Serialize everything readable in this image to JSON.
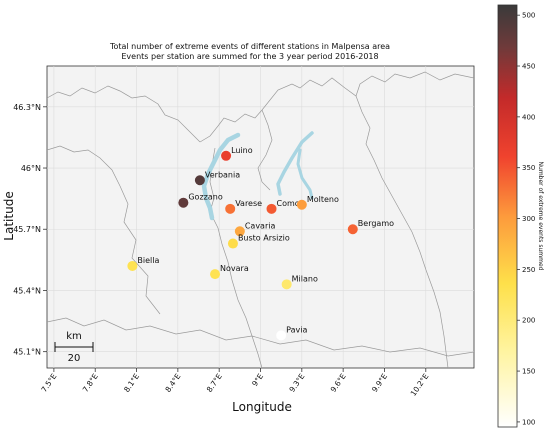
{
  "title_line1": "Total number of extreme events of different stations in Malpensa area",
  "title_line2": "Events per station are summed for the 3 year period 2016-2018",
  "xlabel": "Longitude",
  "ylabel": "Latitude",
  "x_ticks": [
    "7.5°E",
    "7.8°E",
    "8.1°E",
    "8.4°E",
    "8.7°E",
    "9°E",
    "9.3°E",
    "9.6°E",
    "9.9°E",
    "10.2°E"
  ],
  "y_ticks": [
    "46.3°N",
    "46°N",
    "45.7°N",
    "45.4°N",
    "45.1°N"
  ],
  "colorbar_label": "Number of extreme events summed",
  "colorbar_ticks": [
    "100",
    "150",
    "200",
    "250",
    "300",
    "350",
    "400",
    "450",
    "500"
  ],
  "scale_bar": {
    "unit": "km",
    "value": "20"
  },
  "colors": {
    "background": "#ffffff",
    "map_background": "#f3f3f3",
    "borders": "#9a9a9a",
    "grid": "#dcdcdc",
    "lakes": "#a8d5e2"
  },
  "chart_data": {
    "type": "scatter",
    "xlabel": "Longitude",
    "ylabel": "Latitude",
    "xlim": [
      7.45,
      10.55
    ],
    "ylim": [
      45.02,
      46.5
    ],
    "colorbar_range": [
      95,
      510
    ],
    "colormap": "YlOrRd-to-black",
    "stations": [
      {
        "name": "Luino",
        "lon": 8.75,
        "lat": 46.06,
        "events": 370
      },
      {
        "name": "Verbania",
        "lon": 8.56,
        "lat": 45.94,
        "events": 490
      },
      {
        "name": "Gozzano",
        "lon": 8.44,
        "lat": 45.83,
        "events": 480
      },
      {
        "name": "Varese",
        "lon": 8.78,
        "lat": 45.8,
        "events": 330
      },
      {
        "name": "Como",
        "lon": 9.08,
        "lat": 45.8,
        "events": 345
      },
      {
        "name": "Molteno",
        "lon": 9.3,
        "lat": 45.82,
        "events": 300
      },
      {
        "name": "Bergamo",
        "lon": 9.67,
        "lat": 45.7,
        "events": 340
      },
      {
        "name": "Cavaria",
        "lon": 8.85,
        "lat": 45.69,
        "events": 290
      },
      {
        "name": "Busto Arsizio",
        "lon": 8.8,
        "lat": 45.63,
        "events": 240
      },
      {
        "name": "Biella",
        "lon": 8.07,
        "lat": 45.52,
        "events": 230
      },
      {
        "name": "Novara",
        "lon": 8.67,
        "lat": 45.48,
        "events": 230
      },
      {
        "name": "Milano",
        "lon": 9.19,
        "lat": 45.43,
        "events": 210
      },
      {
        "name": "Pavia",
        "lon": 9.15,
        "lat": 45.18,
        "events": 95
      }
    ]
  }
}
